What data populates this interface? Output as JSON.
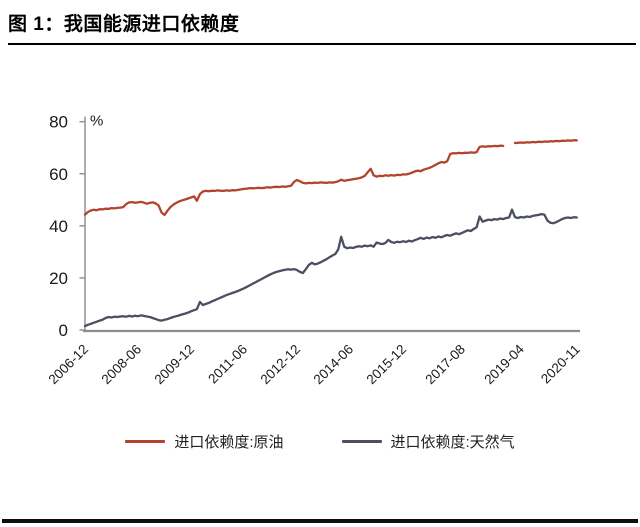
{
  "page": {
    "title": "图 1：我国能源进口依赖度"
  },
  "colors": {
    "crude": "#b2432c",
    "gas": "#4a4f61",
    "axis": "#8c8c8c",
    "title_rule": "#000000",
    "bottom_rule": "#0d0d0d"
  },
  "chart_data": {
    "type": "line",
    "title": "图 1：我国能源进口依赖度",
    "unit_label": "%",
    "xlabel": "",
    "ylabel": "%",
    "ylim": [
      0,
      80
    ],
    "y_ticks": [
      0,
      20,
      40,
      60,
      80
    ],
    "grid": false,
    "legend_position": "bottom",
    "x_start": "2006-12",
    "x_end": "2020-11",
    "x_frequency": "monthly",
    "x_tick_labels": [
      "2006-12",
      "2008-06",
      "2009-12",
      "2011-06",
      "2012-12",
      "2014-06",
      "2015-12",
      "2017-08",
      "2019-04",
      "2020-11"
    ],
    "x_tick_months": [
      0,
      18,
      36,
      54,
      72,
      90,
      108,
      128,
      148,
      167
    ],
    "series": [
      {
        "name": "进口依赖度:原油",
        "color": "#b2432c",
        "values": [
          44.3,
          45.3,
          45.9,
          46.2,
          46.0,
          46.4,
          46.3,
          46.6,
          46.5,
          46.8,
          46.7,
          46.9,
          47.0,
          47.2,
          48.4,
          49.0,
          49.1,
          48.9,
          49.0,
          49.2,
          48.9,
          48.5,
          48.8,
          49.0,
          48.6,
          47.8,
          45.1,
          44.2,
          45.8,
          47.2,
          48.1,
          48.8,
          49.4,
          49.8,
          50.1,
          50.5,
          50.9,
          51.3,
          49.6,
          52.2,
          53.2,
          53.4,
          53.3,
          53.5,
          53.4,
          53.6,
          53.5,
          53.4,
          53.6,
          53.5,
          53.7,
          53.6,
          53.8,
          54.0,
          54.2,
          54.3,
          54.5,
          54.4,
          54.5,
          54.6,
          54.5,
          54.6,
          54.8,
          54.7,
          54.9,
          55.0,
          54.9,
          55.1,
          55.0,
          55.2,
          55.4,
          56.9,
          57.6,
          57.1,
          56.5,
          56.3,
          56.5,
          56.4,
          56.6,
          56.5,
          56.7,
          56.6,
          56.5,
          56.7,
          56.6,
          56.8,
          57.1,
          57.7,
          57.3,
          57.5,
          57.7,
          57.9,
          58.1,
          58.3,
          58.6,
          59.2,
          60.6,
          61.9,
          59.4,
          58.9,
          59.2,
          59.1,
          59.4,
          59.2,
          59.5,
          59.3,
          59.6,
          59.5,
          59.8,
          59.7,
          60.0,
          60.4,
          60.9,
          61.2,
          61.0,
          61.6,
          61.9,
          62.3,
          62.8,
          63.4,
          64.0,
          64.5,
          64.3,
          64.8,
          67.6,
          67.9,
          67.8,
          68.0,
          67.9,
          68.1,
          68.0,
          68.2,
          68.1,
          68.3,
          70.3,
          70.5,
          70.4,
          70.6,
          70.5,
          70.7,
          70.6,
          70.8,
          70.7,
          null,
          null,
          null,
          71.8,
          71.9,
          72.0,
          71.9,
          72.1,
          72.0,
          72.2,
          72.1,
          72.3,
          72.2,
          72.4,
          72.3,
          72.5,
          72.4,
          72.6,
          72.5,
          72.7,
          72.6,
          72.8,
          72.7,
          72.9,
          72.8
        ]
      },
      {
        "name": "进口依赖度:天然气",
        "color": "#4a4f61",
        "values": [
          1.5,
          2.0,
          2.4,
          2.8,
          3.2,
          3.6,
          4.0,
          4.6,
          5.0,
          4.8,
          5.1,
          5.0,
          5.2,
          5.3,
          5.1,
          5.4,
          5.2,
          5.5,
          5.3,
          5.6,
          5.4,
          5.2,
          5.0,
          4.6,
          4.2,
          3.8,
          3.6,
          3.9,
          4.2,
          4.6,
          5.0,
          5.3,
          5.6,
          6.0,
          6.3,
          6.7,
          7.2,
          7.6,
          8.0,
          10.8,
          9.6,
          10.0,
          10.4,
          10.9,
          11.4,
          11.9,
          12.4,
          12.9,
          13.4,
          13.8,
          14.2,
          14.6,
          15.0,
          15.5,
          16.0,
          16.6,
          17.2,
          17.8,
          18.4,
          19.0,
          19.6,
          20.2,
          20.8,
          21.4,
          21.9,
          22.3,
          22.6,
          22.9,
          23.1,
          23.3,
          23.2,
          23.4,
          23.0,
          22.3,
          21.9,
          23.4,
          25.0,
          25.8,
          25.2,
          25.5,
          26.0,
          26.6,
          27.2,
          27.9,
          28.6,
          29.2,
          31.0,
          35.8,
          32.0,
          31.4,
          31.7,
          31.5,
          31.9,
          32.2,
          32.0,
          32.4,
          32.2,
          32.5,
          32.0,
          33.6,
          33.2,
          33.0,
          33.4,
          34.6,
          33.8,
          33.5,
          33.9,
          33.7,
          34.1,
          33.8,
          34.3,
          34.0,
          34.5,
          34.9,
          35.4,
          35.0,
          35.5,
          35.2,
          35.7,
          35.4,
          35.9,
          35.6,
          36.1,
          36.5,
          36.2,
          36.7,
          37.1,
          36.8,
          37.3,
          37.8,
          38.3,
          38.0,
          38.8,
          39.5,
          43.6,
          41.6,
          42.0,
          42.4,
          42.2,
          42.6,
          42.4,
          42.8,
          42.6,
          43.0,
          43.2,
          46.2,
          43.3,
          43.0,
          43.4,
          43.2,
          43.6,
          43.4,
          43.8,
          44.0,
          44.2,
          44.5,
          44.3,
          42.0,
          41.2,
          41.0,
          41.4,
          42.0,
          42.6,
          43.0,
          43.2,
          43.0,
          43.3,
          43.2
        ]
      }
    ]
  }
}
